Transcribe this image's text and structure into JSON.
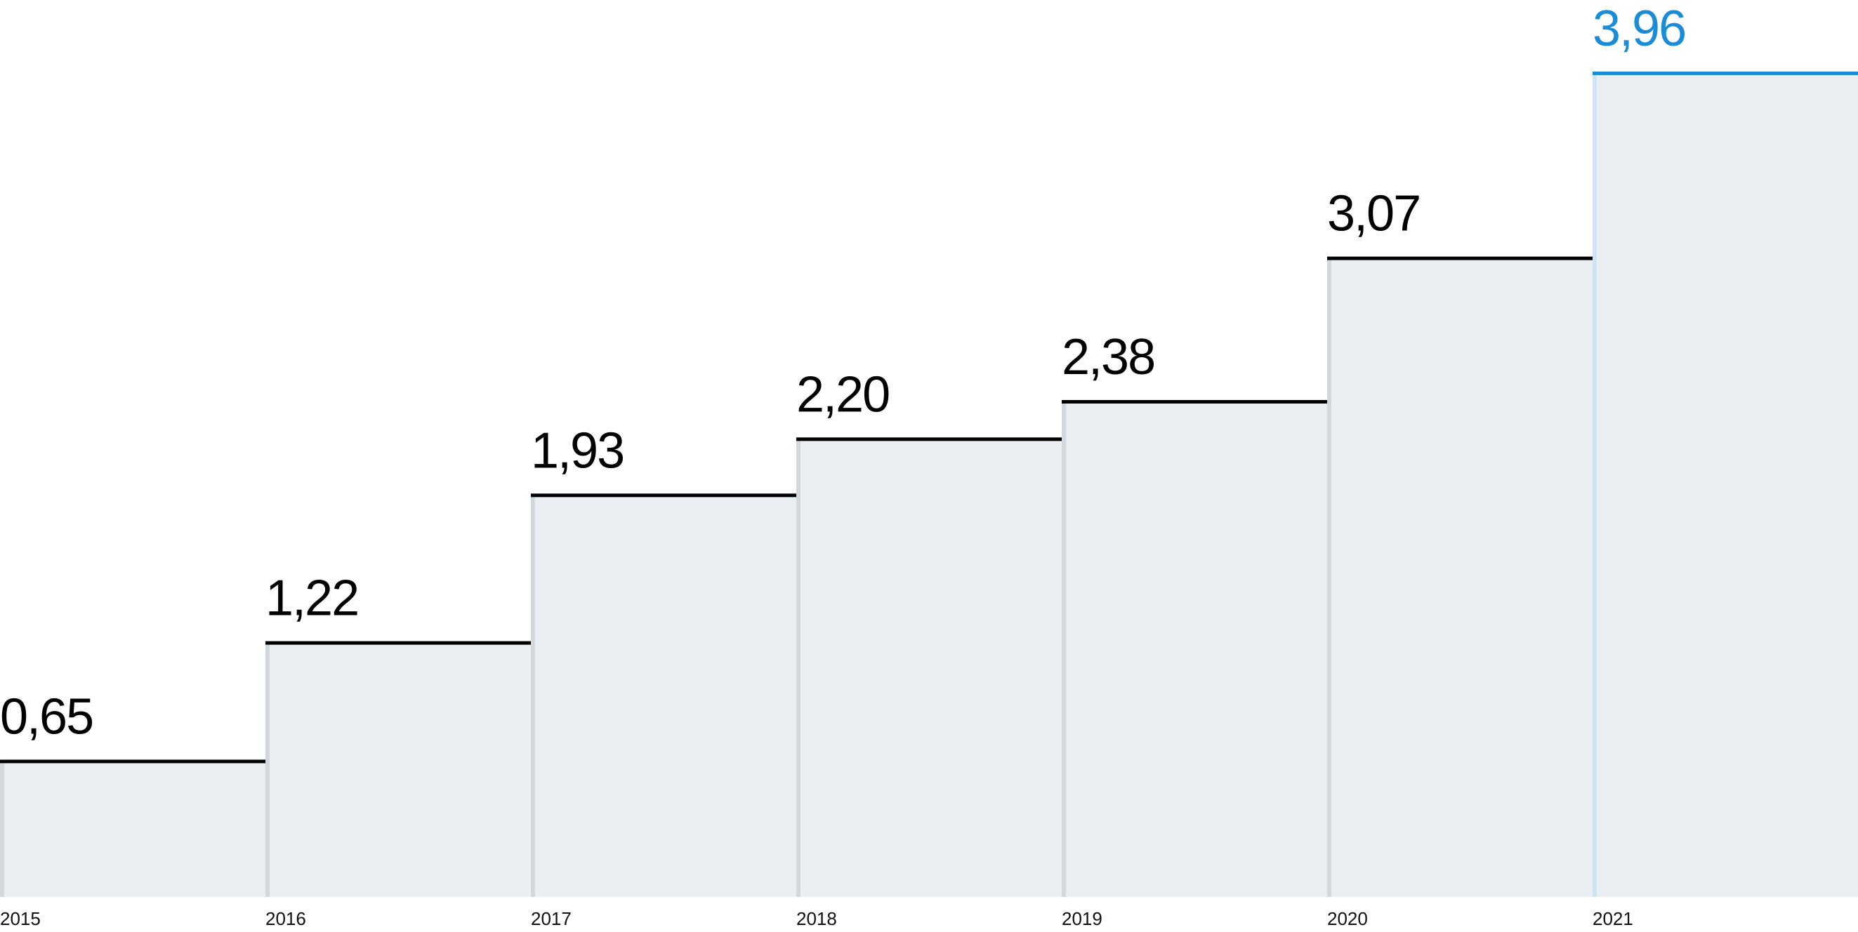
{
  "chart_data": {
    "type": "bar",
    "title": "",
    "xlabel": "",
    "ylabel": "",
    "categories": [
      "2015",
      "2016",
      "2017",
      "2018",
      "2019",
      "2020",
      "2021"
    ],
    "values": [
      0.65,
      1.22,
      1.93,
      2.2,
      2.38,
      3.07,
      3.96
    ],
    "value_labels": [
      "0,65",
      "1,22",
      "1,93",
      "2,20",
      "2,38",
      "3,07",
      "3,96"
    ],
    "highlight_index": 6,
    "ylim": [
      0,
      3.96
    ],
    "grid": false,
    "legend": "none",
    "colors": {
      "bar_fill": "#eaeff4",
      "bar_top": "#000000",
      "bar_edge": "#d3d8dd",
      "highlight": "#1a8cd8",
      "highlight_edge": "#cfe3f3",
      "label": "#000000"
    }
  }
}
